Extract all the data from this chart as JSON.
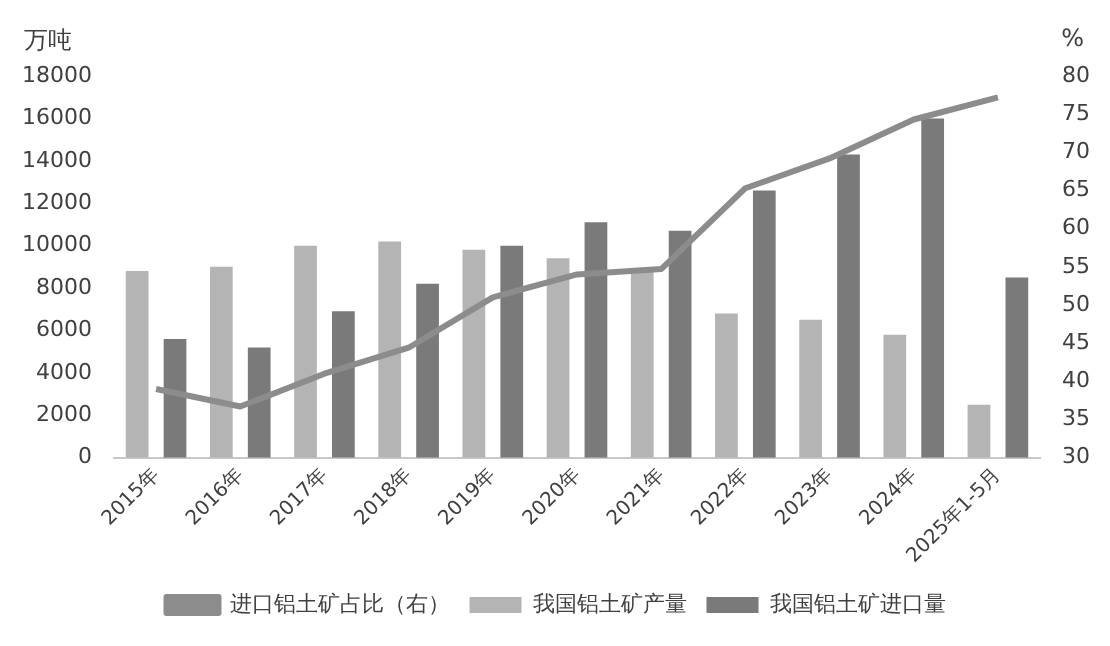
{
  "chart_data": {
    "type": "bar",
    "categories": [
      "2015年",
      "2016年",
      "2017年",
      "2018年",
      "2019年",
      "2020年",
      "2021年",
      "2022年",
      "2023年",
      "2024年",
      "2025年1-5月"
    ],
    "ylabel": "万吨",
    "y2label": "%",
    "series": [
      {
        "name": "我国铝土矿产量",
        "color": "#b4b4b4",
        "values": [
          8800,
          9000,
          10000,
          10200,
          9800,
          9400,
          8900,
          6800,
          6500,
          5800,
          2500
        ]
      },
      {
        "name": "我国铝土矿进口量",
        "color": "#7a7a7a",
        "values": [
          5600,
          5200,
          6900,
          8200,
          10000,
          11100,
          10700,
          12600,
          14300,
          16000,
          8500
        ]
      },
      {
        "name": "进口铝土矿占比（右）",
        "type": "line",
        "axis": "y2",
        "color": "#8c8c8c",
        "values": [
          39,
          36.7,
          41,
          44.4,
          51,
          54,
          54.7,
          65.3,
          69.2,
          74.3,
          77.2
        ]
      }
    ],
    "ylim": [
      0,
      18000
    ],
    "yticks": [
      0,
      2000,
      4000,
      6000,
      8000,
      10000,
      12000,
      14000,
      16000,
      18000
    ],
    "y2lim": [
      30,
      80
    ],
    "y2ticks": [
      30,
      35,
      40,
      45,
      50,
      55,
      60,
      65,
      70,
      75,
      80
    ],
    "grid": false,
    "legend": "bottom",
    "marker": "none",
    "line_style": "solid"
  }
}
